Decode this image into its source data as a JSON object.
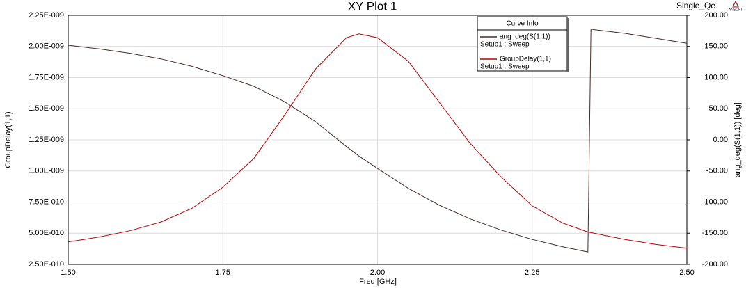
{
  "chart_data": {
    "type": "line",
    "title": "XY Plot 1",
    "subtitle": "Single_Qe",
    "logo": "ANSOFT",
    "legend_title": "Curve Info",
    "legend": "top-right",
    "grid": true,
    "x_label": "Freq [GHz]",
    "y_label": "GroupDelay(1,1)",
    "y2_label": "ang_deg(S(1,1)) [deg]",
    "x": [
      1.5,
      1.55,
      1.6,
      1.65,
      1.7,
      1.75,
      1.8,
      1.85,
      1.9,
      1.95,
      1.97,
      2.0,
      2.05,
      2.1,
      2.15,
      2.2,
      2.25,
      2.3,
      2.34,
      2.345,
      2.35,
      2.4,
      2.45,
      2.5
    ],
    "xlim": [
      1.5,
      2.5
    ],
    "xticks": [
      {
        "value": 1.5,
        "label": "1.50"
      },
      {
        "value": 1.75,
        "label": "1.75"
      },
      {
        "value": 2,
        "label": "2.00"
      },
      {
        "value": 2.25,
        "label": "2.25"
      },
      {
        "value": 2.5,
        "label": "2.50"
      }
    ],
    "ylim": [
      2.5e-10,
      2.25e-09
    ],
    "yticks": [
      {
        "value": 2.5e-10,
        "label": "2.50E-010"
      },
      {
        "value": 5e-10,
        "label": "5.00E-010"
      },
      {
        "value": 7.5e-10,
        "label": "7.50E-010"
      },
      {
        "value": 1e-09,
        "label": "1.00E-009"
      },
      {
        "value": 1.25e-09,
        "label": "1.25E-009"
      },
      {
        "value": 1.5e-09,
        "label": "1.50E-009"
      },
      {
        "value": 1.75e-09,
        "label": "1.75E-009"
      },
      {
        "value": 2e-09,
        "label": "2.00E-009"
      },
      {
        "value": 2.25e-09,
        "label": "2.25E-009"
      }
    ],
    "y2lim": [
      -200,
      200
    ],
    "y2ticks": [
      {
        "value": -200,
        "label": "-200.00"
      },
      {
        "value": -150,
        "label": "-150.00"
      },
      {
        "value": -100,
        "label": "-100.00"
      },
      {
        "value": -50,
        "label": "-50.00"
      },
      {
        "value": 0,
        "label": "0.00"
      },
      {
        "value": 50,
        "label": "50.00"
      },
      {
        "value": 100,
        "label": "100.00"
      },
      {
        "value": 150,
        "label": "150.00"
      },
      {
        "value": 200,
        "label": "200.00"
      }
    ],
    "series": [
      {
        "name": "ang_deg(S(1,1))",
        "setup": "Setup1 : Sweep",
        "color": "#4a2a2a",
        "axis": "y2",
        "values": [
          152,
          146,
          139,
          130,
          118,
          103,
          86,
          61,
          29,
          -11,
          -26,
          -46,
          -78,
          -105,
          -127,
          -145,
          -160,
          -172,
          -180,
          178,
          177,
          171,
          163,
          155
        ]
      },
      {
        "name": "GroupDelay(1,1)",
        "setup": "Setup1 : Sweep",
        "color": "#c00000",
        "values": [
          4.3e-10,
          4.7e-10,
          5.2e-10,
          5.9e-10,
          7e-10,
          8.7e-10,
          1.1e-09,
          1.45e-09,
          1.82e-09,
          2.07e-09,
          2.1e-09,
          2.07e-09,
          1.88e-09,
          1.55e-09,
          1.22e-09,
          9.5e-10,
          7.2e-10,
          5.8e-10,
          5.1e-10,
          5.05e-10,
          5e-10,
          4.5e-10,
          4.1e-10,
          3.8e-10
        ]
      }
    ]
  }
}
